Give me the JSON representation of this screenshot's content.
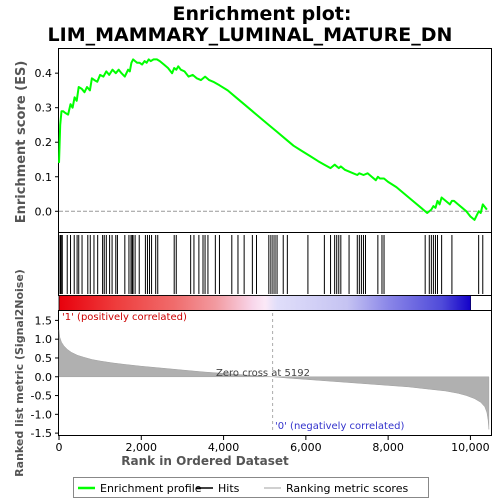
{
  "chart_data": {
    "title_line1": "Enrichment plot:",
    "title_line2": "LIM_MAMMARY_LUMINAL_MATURE_DN",
    "type": "line",
    "xlabel": "Rank in Ordered Dataset",
    "xlim": [
      0,
      10500
    ],
    "x_ticks": [
      0,
      2000,
      4000,
      6000,
      8000,
      10000
    ],
    "x_tick_labels": [
      "0",
      "2,000",
      "4,000",
      "6,000",
      "8,000",
      "10,000"
    ],
    "es_panel": {
      "ylabel": "Enrichment score (ES)",
      "ylim": [
        -0.06,
        0.47
      ],
      "y_ticks": [
        0.0,
        0.1,
        0.2,
        0.3,
        0.4
      ],
      "y_tick_labels": [
        "0.0",
        "0.1",
        "0.2",
        "0.3",
        "0.4"
      ],
      "series": [
        {
          "name": "Enrichment profile",
          "color": "#00ff00",
          "x": [
            0,
            30,
            60,
            100,
            150,
            220,
            280,
            330,
            380,
            430,
            480,
            550,
            620,
            680,
            750,
            800,
            860,
            930,
            1000,
            1080,
            1150,
            1220,
            1300,
            1380,
            1450,
            1520,
            1600,
            1680,
            1720,
            1760,
            1800,
            1850,
            1900,
            1960,
            2020,
            2080,
            2130,
            2180,
            2230,
            2300,
            2380,
            2450,
            2550,
            2650,
            2750,
            2800,
            2850,
            2900,
            2960,
            3050,
            3150,
            3250,
            3350,
            3450,
            3550,
            3650,
            3750,
            3900,
            4100,
            4300,
            4500,
            4700,
            4900,
            5100,
            5300,
            5500,
            5700,
            5900,
            6100,
            6300,
            6450,
            6600,
            6700,
            6800,
            6850,
            6950,
            7050,
            7150,
            7250,
            7300,
            7400,
            7500,
            7600,
            7700,
            7750,
            7800,
            7900,
            8000,
            8200,
            8400,
            8600,
            8800,
            8950,
            9050,
            9100,
            9150,
            9200,
            9250,
            9300,
            9400,
            9500,
            9550,
            9600,
            9700,
            9800,
            9900,
            10000,
            10100,
            10200,
            10250,
            10300,
            10400
          ],
          "y": [
            0.14,
            0.25,
            0.29,
            0.29,
            0.285,
            0.28,
            0.31,
            0.3,
            0.33,
            0.32,
            0.36,
            0.355,
            0.345,
            0.36,
            0.35,
            0.385,
            0.38,
            0.375,
            0.395,
            0.39,
            0.405,
            0.395,
            0.41,
            0.4,
            0.41,
            0.4,
            0.39,
            0.41,
            0.405,
            0.43,
            0.44,
            0.435,
            0.43,
            0.43,
            0.425,
            0.435,
            0.43,
            0.44,
            0.435,
            0.44,
            0.44,
            0.435,
            0.425,
            0.415,
            0.4,
            0.415,
            0.41,
            0.42,
            0.41,
            0.405,
            0.39,
            0.395,
            0.385,
            0.38,
            0.39,
            0.38,
            0.375,
            0.365,
            0.35,
            0.33,
            0.31,
            0.29,
            0.27,
            0.25,
            0.23,
            0.21,
            0.19,
            0.175,
            0.16,
            0.145,
            0.135,
            0.125,
            0.135,
            0.125,
            0.13,
            0.12,
            0.115,
            0.11,
            0.105,
            0.11,
            0.105,
            0.11,
            0.1,
            0.09,
            0.1,
            0.095,
            0.095,
            0.085,
            0.07,
            0.05,
            0.03,
            0.01,
            -0.005,
            0.005,
            0.015,
            0.01,
            0.03,
            0.02,
            0.04,
            0.03,
            0.02,
            0.03,
            0.03,
            0.02,
            0.01,
            0.0,
            -0.015,
            -0.025,
            0.0,
            -0.005,
            0.02,
            0.005
          ]
        }
      ]
    },
    "hits_panel": {
      "hit_ranks": [
        25,
        40,
        55,
        80,
        200,
        280,
        370,
        440,
        480,
        560,
        700,
        760,
        850,
        940,
        1060,
        1100,
        1150,
        1230,
        1290,
        1380,
        1420,
        1600,
        1700,
        1750,
        1780,
        1800,
        1850,
        1950,
        2100,
        2150,
        2200,
        2250,
        2350,
        2400,
        2800,
        2850,
        3200,
        3280,
        3400,
        3500,
        3550,
        3620,
        3800,
        3900,
        4200,
        4350,
        4500,
        4700,
        4800,
        5100,
        5150,
        5200,
        5250,
        5300,
        5450,
        5550,
        6050,
        6450,
        6600,
        6700,
        6750,
        6800,
        6850,
        7050,
        7250,
        7300,
        7350,
        7400,
        7450,
        7750,
        7850,
        7900,
        8900,
        9000,
        9050,
        9100,
        9150,
        9200,
        9300,
        9550,
        10200,
        10300
      ]
    },
    "ranked_panel": {
      "ylabel": "Ranked list metric (Signal2Noise)",
      "ylim": [
        -1.55,
        1.75
      ],
      "y_ticks": [
        -1.5,
        -1.0,
        -0.5,
        0.0,
        0.5,
        1.0,
        1.5
      ],
      "y_tick_labels": [
        "-1.5",
        "-1.0",
        "-0.5",
        "0.0",
        "0.5",
        "1.0",
        "1.5"
      ],
      "x": [
        0,
        20,
        60,
        120,
        200,
        300,
        450,
        600,
        800,
        1000,
        1300,
        1600,
        2000,
        2500,
        3000,
        3500,
        4000,
        4500,
        5000,
        5192,
        5500,
        6000,
        6500,
        7000,
        7500,
        8000,
        8500,
        9000,
        9400,
        9700,
        9900,
        10100,
        10250,
        10350,
        10400,
        10430,
        10450
      ],
      "y": [
        1.25,
        1.05,
        0.92,
        0.82,
        0.73,
        0.65,
        0.57,
        0.52,
        0.46,
        0.42,
        0.37,
        0.33,
        0.28,
        0.23,
        0.18,
        0.13,
        0.09,
        0.05,
        0.01,
        0.0,
        -0.03,
        -0.07,
        -0.11,
        -0.15,
        -0.19,
        -0.23,
        -0.27,
        -0.33,
        -0.38,
        -0.44,
        -0.5,
        -0.58,
        -0.68,
        -0.8,
        -0.95,
        -1.15,
        -1.4
      ],
      "zero_cross_label": "Zero cross at 5192",
      "zero_cross_rank": 5192,
      "pos_label": "'1' (positively correlated)",
      "neg_label": "'0' (negatively correlated)",
      "pos_color": "#ff0000",
      "neg_color": "#0000ff"
    },
    "legend": {
      "placement": "bottom",
      "items": [
        {
          "label": "Enrichment profile",
          "color": "#00ff00"
        },
        {
          "label": "Hits",
          "color": "#000000"
        },
        {
          "label": "Ranking metric scores",
          "color": "#c0c0c0"
        }
      ]
    }
  }
}
